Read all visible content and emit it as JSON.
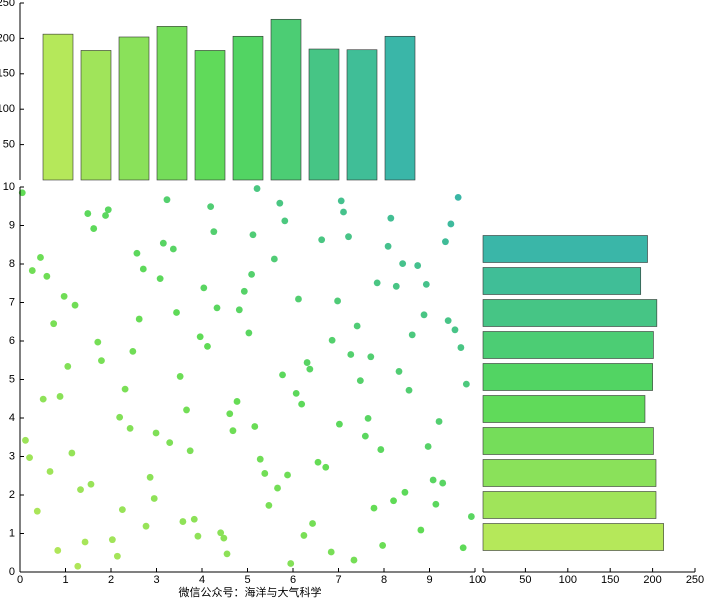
{
  "chart_data": [
    {
      "type": "scatter",
      "x": [
        0.12,
        0.45,
        0.83,
        1.21,
        1.56,
        1.94,
        2.31,
        2.77,
        3.08,
        3.52,
        3.91,
        4.26,
        4.68,
        5.03,
        5.47,
        5.82,
        6.19,
        6.55,
        6.98,
        7.34,
        7.71,
        8.09,
        8.46,
        8.88,
        9.21,
        9.63,
        9.92,
        0.27,
        0.66,
        1.05,
        1.43,
        1.88,
        2.19,
        2.62,
        2.95,
        3.37,
        3.74,
        4.12,
        4.55,
        4.93,
        5.28,
        5.71,
        6.07,
        6.43,
        6.86,
        7.22,
        7.59,
        7.97,
        8.33,
        8.74,
        9.08,
        9.47,
        9.81,
        0.38,
        0.74,
        1.14,
        1.62,
        2.03,
        2.48,
        2.86,
        3.23,
        3.66,
        4.04,
        4.41,
        4.82,
        5.16,
        5.59,
        5.95,
        6.31,
        6.72,
        7.11,
        7.48,
        7.85,
        8.21,
        8.62,
        8.97,
        9.35,
        9.74,
        0.05,
        0.51,
        0.97,
        1.33,
        1.71,
        2.14,
        2.57,
        2.99,
        3.44,
        3.83,
        4.19,
        4.61,
        5.09,
        5.38,
        5.77,
        6.24,
        6.63,
        7.02,
        7.41,
        7.78,
        8.15,
        8.55,
        8.93,
        9.29,
        9.69,
        0.21,
        0.59,
        1.27,
        1.79,
        2.42,
        3.15,
        3.58,
        4.33,
        4.77,
        5.21,
        5.66,
        6.12,
        6.84,
        7.27,
        7.93,
        8.41,
        9.14,
        9.56,
        0.88,
        1.49,
        2.25,
        2.71,
        3.29,
        3.96,
        4.48,
        5.12,
        5.88,
        6.37,
        7.06,
        7.65,
        8.27,
        8.81,
        9.41
      ],
      "y": [
        3.42,
        8.17,
        0.56,
        6.93,
        2.28,
        9.41,
        4.75,
        1.19,
        7.62,
        5.08,
        0.93,
        8.84,
        3.67,
        6.21,
        1.73,
        9.12,
        4.36,
        2.85,
        7.04,
        0.31,
        5.59,
        8.46,
        2.07,
        6.68,
        3.91,
        9.73,
        1.44,
        7.83,
        2.61,
        5.34,
        0.78,
        9.26,
        4.02,
        6.57,
        1.91,
        8.39,
        3.15,
        5.86,
        0.47,
        7.29,
        2.93,
        9.58,
        4.64,
        1.26,
        6.02,
        8.71,
        3.53,
        0.69,
        5.21,
        7.96,
        2.39,
        9.04,
        4.88,
        1.58,
        6.45,
        3.09,
        8.92,
        0.84,
        5.73,
        2.46,
        9.67,
        4.21,
        7.38,
        1.02,
        6.81,
        3.78,
        8.13,
        0.22,
        5.44,
        2.72,
        9.35,
        4.97,
        7.51,
        1.85,
        6.16,
        3.26,
        8.58,
        0.63,
        9.85,
        4.49,
        7.16,
        2.14,
        5.97,
        0.41,
        8.28,
        3.61,
        6.74,
        1.37,
        9.49,
        4.11,
        7.73,
        2.56,
        5.12,
        0.95,
        8.63,
        3.84,
        6.39,
        1.66,
        9.19,
        4.72,
        7.47,
        2.31,
        5.83,
        2.97,
        7.68,
        0.15,
        5.49,
        3.73,
        8.54,
        1.31,
        6.86,
        4.43,
        9.96,
        2.18,
        7.09,
        0.52,
        5.65,
        3.18,
        8.01,
        1.76,
        6.29,
        4.56,
        9.31,
        1.62,
        7.87,
        3.36,
        6.11,
        0.88,
        8.76,
        2.52,
        5.27,
        9.64,
        3.99,
        7.42,
        1.09,
        6.53
      ],
      "colormap": [
        "#bce85a",
        "#5fdb55",
        "#38b4aa"
      ],
      "xlim": [
        0,
        10
      ],
      "ylim": [
        0,
        10
      ],
      "xticks": [
        0,
        1,
        2,
        3,
        4,
        5,
        6,
        7,
        8,
        9,
        10
      ],
      "yticks": [
        0,
        1,
        2,
        3,
        4,
        5,
        6,
        7,
        8,
        9,
        10
      ]
    },
    {
      "type": "bar",
      "values": [
        206,
        183,
        202,
        217,
        183,
        203,
        227,
        185,
        184,
        203
      ],
      "colormap": [
        "#b5e85a",
        "#55d85a",
        "#3ab6a8"
      ],
      "ylim": [
        0,
        250
      ],
      "yticks": [
        50,
        100,
        150,
        200,
        250
      ]
    },
    {
      "type": "barh",
      "values": [
        213,
        204,
        204,
        201,
        191,
        200,
        201,
        205,
        186,
        194
      ],
      "colormap": [
        "#b5e85a",
        "#55d85a",
        "#3ab6a8"
      ],
      "xlim": [
        0,
        250
      ],
      "xticks": [
        0,
        50,
        100,
        150,
        200,
        250
      ]
    }
  ],
  "annotation": "微信公众号：海洋与大气科学"
}
